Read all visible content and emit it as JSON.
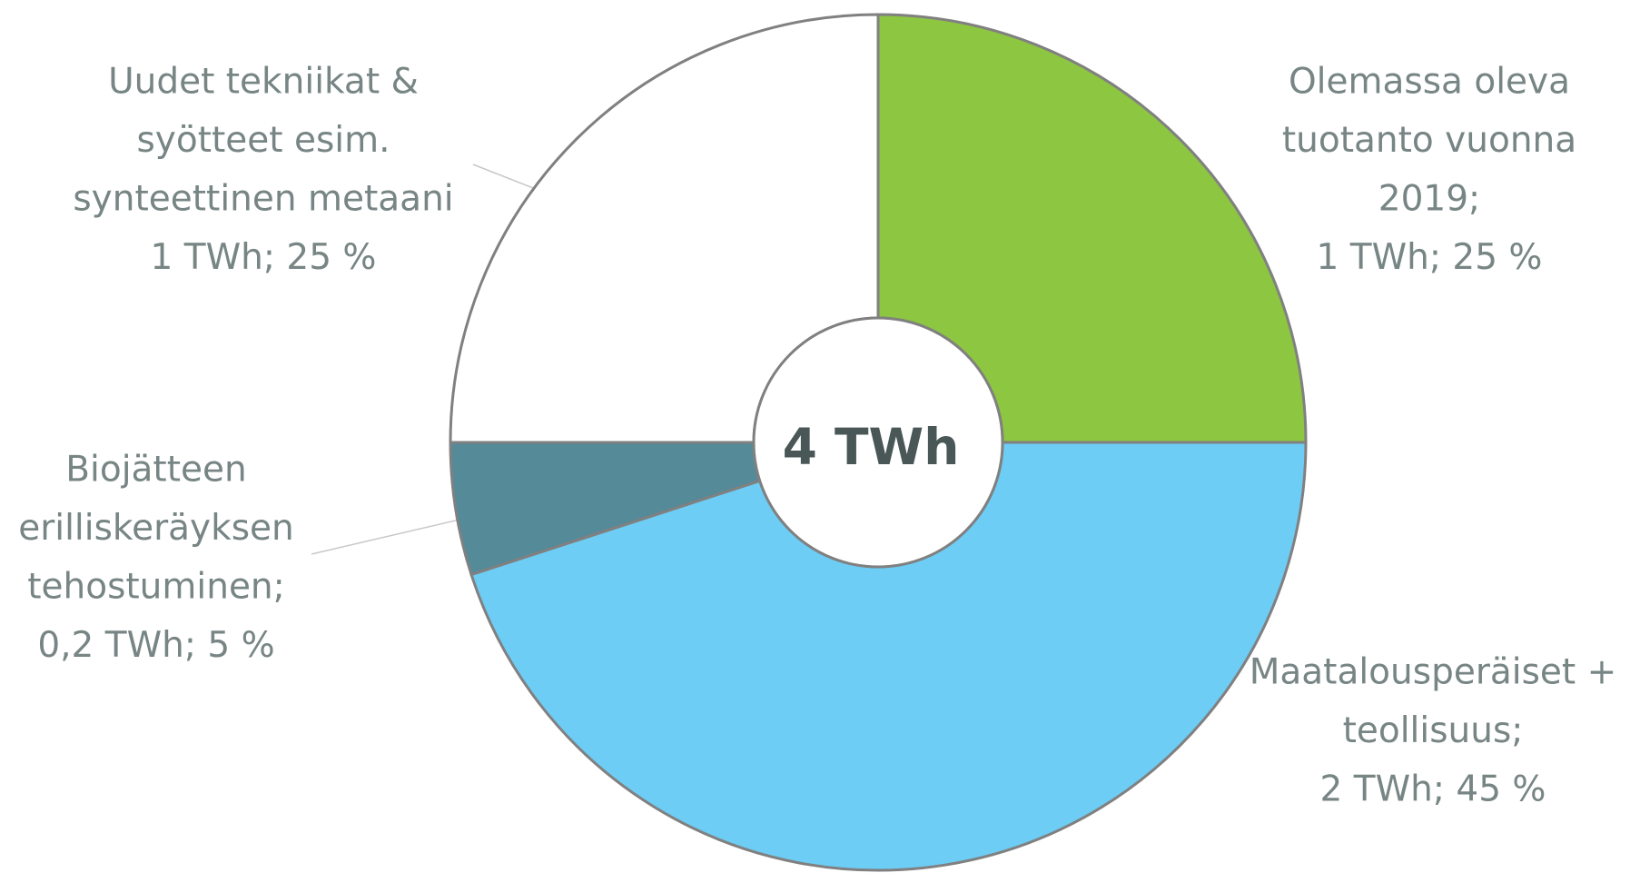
{
  "chart_data": {
    "type": "donut",
    "center_label": "4 TWh",
    "categories": [
      [
        "Olemassa oleva",
        "tuotanto vuonna",
        "2019;"
      ],
      [
        "Maatalousperäiset +",
        "teollisuus;"
      ],
      [
        "Biojätteen",
        "erilliskeräyksen",
        "tehostuminen;"
      ],
      [
        "Uudet tekniikat &",
        "syötteet esim.",
        "synteettinen metaani"
      ]
    ],
    "values": [
      25,
      45,
      5,
      25
    ],
    "value_labels": [
      "1 TWh; 25 %",
      "2 TWh; 45 %",
      "0,2 TWh; 5 %",
      "1 TWh; 25 %"
    ],
    "colors": [
      "#8dc641",
      "#6dcdf5",
      "#558a99",
      "#ffffff"
    ]
  }
}
